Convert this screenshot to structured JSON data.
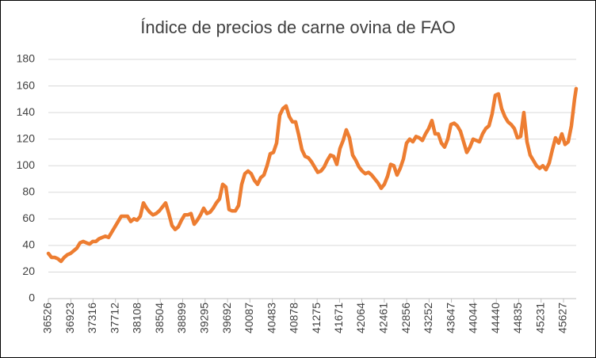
{
  "chart_data": {
    "type": "line",
    "title": "Índice de precios de carne ovina de FAO",
    "color": "#ed7d31",
    "grid": true,
    "xlim": [
      36526,
      45851
    ],
    "xticks": [
      36526,
      36923,
      37316,
      37712,
      38108,
      38504,
      38899,
      39295,
      39692,
      40087,
      40483,
      40878,
      41275,
      41671,
      42064,
      42461,
      42856,
      43252,
      43647,
      44044,
      44440,
      44835,
      45231,
      45627
    ],
    "ylim": [
      0,
      180
    ],
    "yticks": [
      0,
      20,
      40,
      60,
      80,
      100,
      120,
      140,
      160,
      180
    ],
    "x": [
      36526,
      36582,
      36638,
      36694,
      36750,
      36806,
      36862,
      36918,
      36974,
      37030,
      37086,
      37142,
      37198,
      37254,
      37310,
      37366,
      37422,
      37478,
      37534,
      37590,
      37646,
      37702,
      37758,
      37814,
      37870,
      37926,
      37982,
      38038,
      38094,
      38150,
      38206,
      38262,
      38318,
      38374,
      38430,
      38486,
      38542,
      38598,
      38654,
      38710,
      38766,
      38822,
      38878,
      38934,
      38990,
      39046,
      39102,
      39158,
      39214,
      39270,
      39326,
      39382,
      39438,
      39494,
      39550,
      39606,
      39662,
      39718,
      39774,
      39830,
      39886,
      39942,
      39998,
      40054,
      40110,
      40166,
      40222,
      40278,
      40334,
      40390,
      40446,
      40502,
      40558,
      40614,
      40670,
      40726,
      40782,
      40838,
      40894,
      40950,
      41006,
      41062,
      41118,
      41174,
      41230,
      41286,
      41342,
      41398,
      41454,
      41510,
      41566,
      41622,
      41678,
      41734,
      41790,
      41846,
      41902,
      41958,
      42014,
      42070,
      42126,
      42182,
      42238,
      42294,
      42350,
      42406,
      42462,
      42518,
      42574,
      42630,
      42686,
      42742,
      42798,
      42854,
      42910,
      42966,
      43022,
      43078,
      43134,
      43190,
      43246,
      43302,
      43358,
      43414,
      43470,
      43526,
      43582,
      43638,
      43694,
      43750,
      43806,
      43862,
      43918,
      43974,
      44030,
      44086,
      44142,
      44198,
      44254,
      44310,
      44366,
      44422,
      44478,
      44534,
      44590,
      44646,
      44702,
      44758,
      44814,
      44870,
      44926,
      44982,
      45038,
      45094,
      45150,
      45206,
      45262,
      45318,
      45374,
      45430,
      45486,
      45542,
      45598,
      45654,
      45710,
      45766,
      45822,
      45850
    ],
    "values": [
      34,
      31,
      31,
      30,
      28,
      31,
      33,
      34,
      36,
      38,
      42,
      43,
      42,
      41,
      43,
      43,
      45,
      46,
      47,
      46,
      50,
      54,
      58,
      62,
      62,
      62,
      58,
      60,
      59,
      62,
      72,
      68,
      65,
      63,
      64,
      66,
      69,
      72,
      64,
      55,
      52,
      54,
      59,
      63,
      63,
      64,
      56,
      59,
      63,
      68,
      64,
      65,
      68,
      72,
      75,
      86,
      84,
      67,
      66,
      66,
      70,
      86,
      94,
      96,
      94,
      89,
      86,
      91,
      93,
      100,
      109,
      110,
      117,
      138,
      143,
      145,
      137,
      133,
      133,
      123,
      112,
      107,
      106,
      103,
      99,
      95,
      96,
      99,
      104,
      108,
      107,
      101,
      113,
      119,
      127,
      121,
      108,
      104,
      99,
      96,
      94,
      95,
      93,
      90,
      87,
      83,
      86,
      92,
      101,
      100,
      93,
      98,
      105,
      117,
      120,
      118,
      122,
      121,
      119,
      124,
      128,
      134,
      124,
      124,
      117,
      114,
      120,
      131,
      132,
      130,
      126,
      118,
      110,
      114,
      120,
      119,
      118,
      124,
      128,
      130,
      139,
      153,
      154,
      143,
      137,
      133,
      131,
      128,
      121,
      122,
      140,
      118,
      108,
      104,
      100,
      98,
      100,
      97,
      102,
      112,
      121,
      117,
      124,
      116,
      118,
      130,
      150,
      158
    ]
  }
}
